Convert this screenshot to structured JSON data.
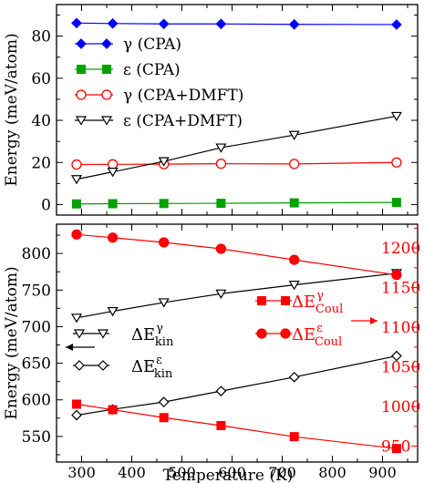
{
  "chart_data": [
    {
      "type": "line",
      "panel": "top",
      "xlim": [
        250,
        970
      ],
      "ylim": [
        -5,
        95
      ],
      "ylabel": "Energy (meV/atom)",
      "yticks": [
        0,
        20,
        40,
        60,
        80
      ],
      "grid": false,
      "legend_placement": "upper-left",
      "series": [
        {
          "name": "γ (CPA)",
          "color": "#0000ff",
          "marker": "diamond-filled",
          "x": [
            290,
            362,
            464,
            578,
            724,
            928
          ],
          "values": [
            86.2,
            86.0,
            85.8,
            85.8,
            85.6,
            85.5
          ]
        },
        {
          "name": "ε (CPA)",
          "color": "#00a000",
          "marker": "square-filled",
          "x": [
            290,
            362,
            464,
            578,
            724,
            928
          ],
          "values": [
            0.3,
            0.4,
            0.5,
            0.6,
            0.8,
            1.0
          ]
        },
        {
          "name": "γ (CPA+DMFT)",
          "color": "#ff0000",
          "marker": "circle-open",
          "x": [
            290,
            362,
            464,
            578,
            724,
            928
          ],
          "values": [
            19.0,
            19.1,
            19.2,
            19.4,
            19.3,
            20.0
          ]
        },
        {
          "name": "ε (CPA+DMFT)",
          "color": "#000000",
          "marker": "triangle-down-open",
          "x": [
            290,
            362,
            464,
            578,
            724,
            928
          ],
          "values": [
            12.0,
            15.5,
            20.5,
            27.0,
            33.0,
            42.0
          ]
        }
      ]
    },
    {
      "type": "line",
      "panel": "bottom",
      "xlim": [
        250,
        970
      ],
      "xlabel": "Temperature (K)",
      "xticks": [
        300,
        400,
        500,
        600,
        700,
        800,
        900
      ],
      "ylabel": "Energy (meV/atom)",
      "ylim": [
        515,
        840
      ],
      "yticks": [
        550,
        600,
        650,
        700,
        750,
        800
      ],
      "y2lim": [
        930,
        1230
      ],
      "y2ticks": [
        950,
        1000,
        1050,
        1100,
        1150,
        1200
      ],
      "grid": false,
      "series": [
        {
          "label_main": "ΔE",
          "label_sub": "kin",
          "label_sup": "γ",
          "color": "#000000",
          "marker": "triangle-down-open",
          "axis": "left",
          "x": [
            290,
            362,
            464,
            578,
            724,
            928
          ],
          "values": [
            712,
            721,
            733,
            745,
            757,
            773
          ]
        },
        {
          "label_main": "ΔE",
          "label_sub": "kin",
          "label_sup": "ε",
          "color": "#000000",
          "marker": "diamond-open",
          "axis": "left",
          "x": [
            290,
            362,
            464,
            578,
            724,
            928
          ],
          "values": [
            579,
            587,
            597,
            612,
            631,
            660
          ]
        },
        {
          "label_main": "ΔE",
          "label_sub": "Coul",
          "label_sup": "γ",
          "color": "#ff0000",
          "marker": "square-filled",
          "axis": "right",
          "x": [
            290,
            362,
            464,
            578,
            724,
            928
          ],
          "values": [
            1003,
            996,
            986,
            976,
            962,
            947
          ]
        },
        {
          "label_main": "ΔE",
          "label_sub": "Coul",
          "label_sup": "ε",
          "color": "#ff0000",
          "marker": "circle-filled",
          "axis": "right",
          "x": [
            290,
            362,
            464,
            578,
            724,
            928
          ],
          "values": [
            1217,
            1213,
            1207,
            1199,
            1185,
            1166
          ]
        }
      ]
    }
  ]
}
